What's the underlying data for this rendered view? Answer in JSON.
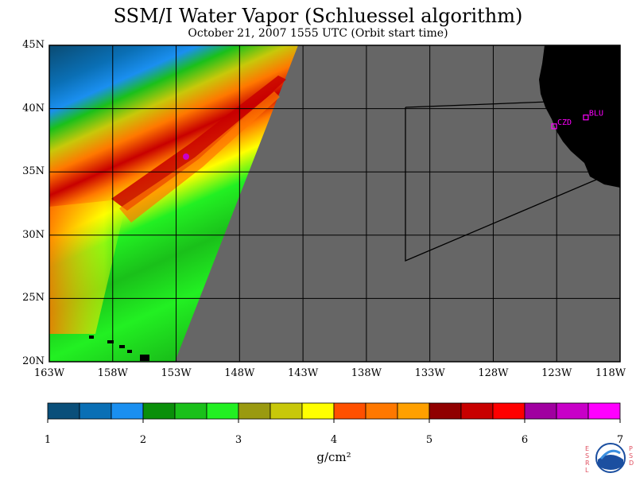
{
  "title": "SSM/I Water Vapor (Schluessel algorithm)",
  "subtitle": "October 21, 2007  1555 UTC  (Orbit start time)",
  "latitude_labels": [
    "45N",
    "40N",
    "35N",
    "30N",
    "25N",
    "20N"
  ],
  "longitude_labels": [
    "163W",
    "158W",
    "153W",
    "148W",
    "143W",
    "138W",
    "133W",
    "128W",
    "123W",
    "118W"
  ],
  "stations": [
    {
      "label": "CZD",
      "lat": 38.6,
      "lon": -123.2
    },
    {
      "label": "BLU",
      "lat": 39.3,
      "lon": -120.7
    }
  ],
  "colorbar": {
    "ticks": [
      "1",
      "2",
      "3",
      "4",
      "5",
      "6",
      "7"
    ],
    "unit": "g/cm²",
    "colors": [
      "#0a4f7a",
      "#0a6fb5",
      "#1a8ff0",
      "#0a8f0a",
      "#1ac01a",
      "#22f022",
      "#9a9a10",
      "#c8c80a",
      "#ffff00",
      "#ff5000",
      "#ff7800",
      "#ffa000",
      "#900000",
      "#c80000",
      "#ff0000",
      "#a000a0",
      "#c800c8",
      "#ff00ff"
    ]
  },
  "logo": {
    "left_text": "ESRL",
    "right_text": "PSD",
    "name": "NOAA"
  },
  "colors": {
    "no_data": "#666666",
    "land": "#000000"
  }
}
